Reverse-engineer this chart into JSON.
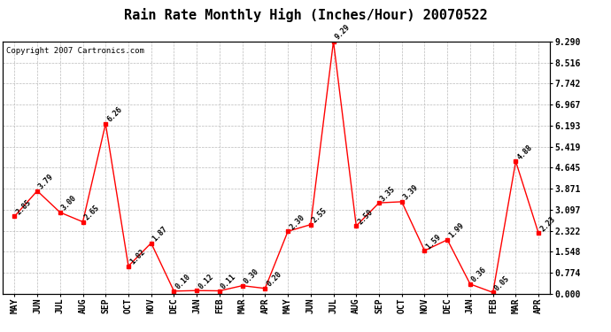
{
  "title": "Rain Rate Monthly High (Inches/Hour) 20070522",
  "copyright": "Copyright 2007 Cartronics.com",
  "months": [
    "MAY",
    "JUN",
    "JUL",
    "AUG",
    "SEP",
    "OCT",
    "NOV",
    "DEC",
    "JAN",
    "FEB",
    "MAR",
    "APR",
    "MAY",
    "JUN",
    "JUL",
    "AUG",
    "SEP",
    "OCT",
    "NOV",
    "DEC",
    "JAN",
    "FEB",
    "MAR",
    "APR"
  ],
  "values": [
    2.85,
    3.79,
    3.0,
    2.65,
    6.26,
    1.02,
    1.87,
    0.1,
    0.12,
    0.11,
    0.3,
    0.2,
    2.3,
    2.55,
    9.29,
    2.5,
    3.35,
    3.39,
    1.59,
    1.99,
    0.36,
    0.05,
    4.88,
    2.23
  ],
  "yticks": [
    0.0,
    0.774,
    1.548,
    2.322,
    3.097,
    3.871,
    4.645,
    5.419,
    6.193,
    6.967,
    7.742,
    8.516,
    9.29
  ],
  "ymax": 9.29,
  "ymin": 0.0,
  "line_color": "red",
  "marker": "s",
  "marker_size": 3,
  "background_color": "white",
  "grid_color": "#bbbbbb",
  "title_fontsize": 11,
  "label_fontsize": 6,
  "tick_fontsize": 7,
  "copyright_fontsize": 6.5
}
